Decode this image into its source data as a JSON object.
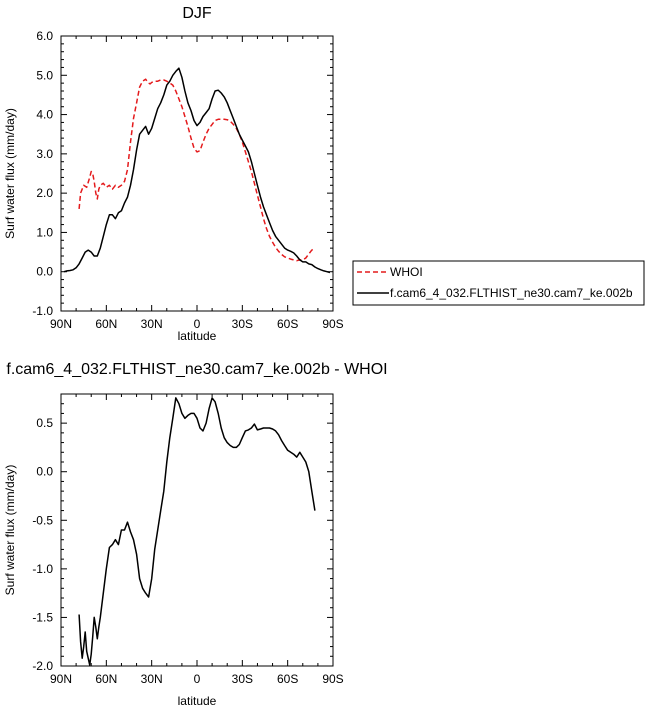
{
  "chart_data": [
    {
      "type": "line",
      "title": "DJF",
      "xlabel": "latitude",
      "ylabel": "Surf water flux (mm/day)",
      "xlim": [
        90,
        -90
      ],
      "ylim": [
        -1.0,
        6.0
      ],
      "xticks": [
        90,
        60,
        30,
        0,
        -30,
        -60,
        -90
      ],
      "xtick_labels": [
        "90N",
        "60N",
        "30N",
        "0",
        "30S",
        "60S",
        "90S"
      ],
      "yticks": [
        -1.0,
        0.0,
        1.0,
        2.0,
        3.0,
        4.0,
        5.0,
        6.0
      ],
      "ytick_labels": [
        "-1.0",
        "0.0",
        "1.0",
        "2.0",
        "3.0",
        "4.0",
        "5.0",
        "6.0"
      ],
      "legend": "outside-right",
      "series": [
        {
          "name": "WHOI",
          "color": "#e41a1c",
          "dash": "dashed",
          "x": [
            78,
            77,
            75,
            73,
            71,
            70,
            69,
            68,
            67,
            66,
            65,
            64,
            62,
            60,
            58,
            56,
            54,
            52,
            50,
            48,
            46,
            44,
            42,
            40,
            38,
            36,
            34,
            33,
            32,
            31,
            30,
            28,
            26,
            24,
            22,
            20,
            18,
            16,
            14,
            12,
            10,
            8,
            6,
            4,
            2,
            0,
            -2,
            -4,
            -6,
            -8,
            -10,
            -12,
            -14,
            -16,
            -18,
            -20,
            -22,
            -24,
            -26,
            -28,
            -30,
            -32,
            -34,
            -36,
            -38,
            -40,
            -42,
            -44,
            -46,
            -48,
            -50,
            -52,
            -54,
            -56,
            -58,
            -60,
            -62,
            -64,
            -66,
            -68,
            -70,
            -72,
            -74,
            -76,
            -78
          ],
          "y": [
            1.6,
            2.0,
            2.2,
            2.15,
            2.4,
            2.55,
            2.5,
            2.3,
            2.0,
            1.85,
            2.1,
            2.2,
            2.25,
            2.15,
            2.2,
            2.1,
            2.2,
            2.15,
            2.2,
            2.3,
            2.6,
            3.3,
            3.9,
            4.3,
            4.7,
            4.85,
            4.9,
            4.85,
            4.8,
            4.78,
            4.82,
            4.85,
            4.85,
            4.88,
            4.88,
            4.85,
            4.8,
            4.75,
            4.6,
            4.4,
            4.2,
            3.95,
            3.7,
            3.4,
            3.15,
            3.05,
            3.08,
            3.3,
            3.5,
            3.65,
            3.75,
            3.85,
            3.88,
            3.88,
            3.88,
            3.87,
            3.83,
            3.75,
            3.65,
            3.5,
            3.3,
            3.05,
            2.8,
            2.55,
            2.25,
            1.95,
            1.65,
            1.35,
            1.1,
            0.9,
            0.75,
            0.62,
            0.52,
            0.44,
            0.38,
            0.35,
            0.32,
            0.3,
            0.28,
            0.3,
            0.3,
            0.35,
            0.45,
            0.55,
            0.6
          ]
        },
        {
          "name": "f.cam6_4_032.FLTHIST_ne30.cam7_ke.002b",
          "color": "#000000",
          "dash": "solid",
          "x": [
            88,
            86,
            84,
            82,
            80,
            78,
            76,
            74,
            72,
            70,
            68,
            66,
            64,
            62,
            60,
            58,
            56,
            54,
            52,
            50,
            48,
            46,
            44,
            42,
            40,
            38,
            36,
            34,
            32,
            30,
            28,
            26,
            24,
            22,
            20,
            18,
            16,
            14,
            12,
            10,
            8,
            6,
            4,
            2,
            0,
            -2,
            -4,
            -6,
            -8,
            -10,
            -12,
            -14,
            -16,
            -18,
            -20,
            -22,
            -24,
            -26,
            -28,
            -30,
            -32,
            -34,
            -36,
            -38,
            -40,
            -42,
            -44,
            -46,
            -48,
            -50,
            -52,
            -54,
            -56,
            -58,
            -60,
            -62,
            -64,
            -66,
            -68,
            -70,
            -72,
            -74,
            -76,
            -78,
            -80,
            -82,
            -84,
            -86,
            -88
          ],
          "y": [
            0.0,
            0.02,
            0.03,
            0.05,
            0.1,
            0.2,
            0.35,
            0.5,
            0.55,
            0.5,
            0.4,
            0.4,
            0.6,
            0.9,
            1.2,
            1.45,
            1.45,
            1.35,
            1.5,
            1.55,
            1.75,
            1.9,
            2.2,
            2.6,
            3.1,
            3.5,
            3.6,
            3.7,
            3.5,
            3.65,
            3.9,
            4.15,
            4.3,
            4.5,
            4.75,
            4.85,
            5.0,
            5.1,
            5.18,
            4.95,
            4.6,
            4.3,
            4.1,
            3.85,
            3.72,
            3.8,
            3.95,
            4.05,
            4.15,
            4.4,
            4.6,
            4.62,
            4.55,
            4.45,
            4.3,
            4.1,
            3.9,
            3.7,
            3.5,
            3.35,
            3.2,
            3.05,
            2.8,
            2.5,
            2.2,
            1.9,
            1.65,
            1.45,
            1.25,
            1.05,
            0.9,
            0.8,
            0.7,
            0.6,
            0.55,
            0.52,
            0.48,
            0.4,
            0.3,
            0.25,
            0.25,
            0.2,
            0.18,
            0.12,
            0.08,
            0.05,
            0.02,
            0.0,
            -0.02
          ]
        }
      ]
    },
    {
      "type": "line",
      "title": "f.cam6_4_032.FLTHIST_ne30.cam7_ke.002b - WHOI",
      "xlabel": "latitude",
      "ylabel": "Surf water flux (mm/day)",
      "xlim": [
        90,
        -90
      ],
      "ylim": [
        -2.0,
        0.8
      ],
      "xticks": [
        90,
        60,
        30,
        0,
        -30,
        -60,
        -90
      ],
      "xtick_labels": [
        "90N",
        "60N",
        "30N",
        "0",
        "30S",
        "60S",
        "90S"
      ],
      "yticks": [
        -2.0,
        -1.5,
        -1.0,
        -0.5,
        0.0,
        0.5
      ],
      "ytick_labels": [
        "-2.0",
        "-1.5",
        "-1.0",
        "-0.5",
        "0.0",
        "0.5"
      ],
      "series": [
        {
          "color": "#000000",
          "dash": "solid",
          "x": [
            78,
            77,
            76,
            75,
            74,
            73,
            72,
            71,
            70,
            69,
            68,
            67,
            66,
            65,
            64,
            62,
            60,
            58,
            56,
            54,
            52,
            50,
            48,
            46,
            44,
            42,
            40,
            38,
            36,
            34,
            32,
            30,
            28,
            26,
            24,
            22,
            20,
            18,
            16,
            14,
            12,
            10,
            8,
            6,
            4,
            2,
            0,
            -2,
            -4,
            -6,
            -8,
            -10,
            -12,
            -14,
            -16,
            -18,
            -20,
            -22,
            -24,
            -26,
            -28,
            -30,
            -32,
            -34,
            -36,
            -38,
            -40,
            -42,
            -44,
            -46,
            -48,
            -50,
            -52,
            -54,
            -56,
            -58,
            -60,
            -62,
            -64,
            -66,
            -68,
            -70,
            -72,
            -74,
            -76,
            -78
          ],
          "y": [
            -1.47,
            -1.75,
            -1.92,
            -1.8,
            -1.65,
            -1.85,
            -1.92,
            -1.99,
            -1.88,
            -1.7,
            -1.5,
            -1.6,
            -1.72,
            -1.6,
            -1.5,
            -1.25,
            -1.0,
            -0.78,
            -0.75,
            -0.7,
            -0.75,
            -0.6,
            -0.6,
            -0.52,
            -0.62,
            -0.7,
            -0.85,
            -1.1,
            -1.2,
            -1.25,
            -1.29,
            -1.1,
            -0.8,
            -0.6,
            -0.4,
            -0.2,
            0.1,
            0.35,
            0.55,
            0.76,
            0.7,
            0.6,
            0.55,
            0.58,
            0.6,
            0.6,
            0.55,
            0.45,
            0.42,
            0.5,
            0.65,
            0.76,
            0.72,
            0.6,
            0.45,
            0.35,
            0.3,
            0.27,
            0.25,
            0.25,
            0.28,
            0.35,
            0.42,
            0.43,
            0.45,
            0.49,
            0.43,
            0.44,
            0.45,
            0.45,
            0.45,
            0.44,
            0.42,
            0.38,
            0.32,
            0.27,
            0.22,
            0.2,
            0.18,
            0.15,
            0.2,
            0.15,
            0.1,
            0.0,
            -0.2,
            -0.4
          ]
        }
      ]
    }
  ]
}
